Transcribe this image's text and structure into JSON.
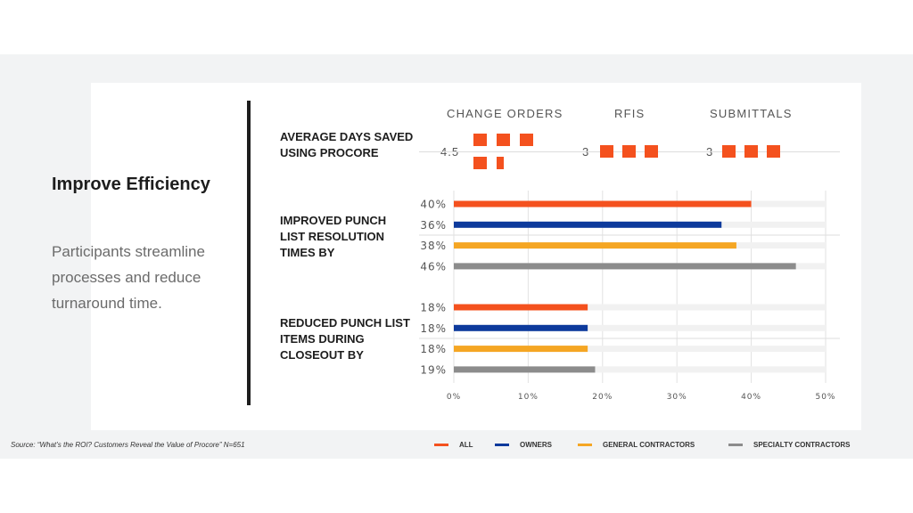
{
  "slide": {
    "headline": "Improve Efficiency",
    "description": "Participants streamline processes and reduce turnaround time.",
    "source": "Source: “What’s the ROI? Customers Reveal the Value of Procore” N=651"
  },
  "days_saved": {
    "label": "AVERAGE DAYS SAVED USING PROCORE",
    "columns": [
      {
        "name": "CHANGE ORDERS",
        "value_text": "4.5",
        "value": 4.5
      },
      {
        "name": "RFIS",
        "value_text": "3",
        "value": 3
      },
      {
        "name": "SUBMITTALS",
        "value_text": "3",
        "value": 3
      }
    ],
    "color": "#f4511e"
  },
  "chart_data": {
    "type": "bar",
    "orientation": "horizontal",
    "groups": [
      {
        "label": "IMPROVED PUNCH LIST RESOLUTION TIMES BY",
        "values": [
          40,
          36,
          38,
          46
        ],
        "value_labels": [
          "40%",
          "36%",
          "38%",
          "46%"
        ]
      },
      {
        "label": "REDUCED PUNCH LIST ITEMS DURING CLOSEOUT BY",
        "values": [
          18,
          18,
          18,
          19
        ],
        "value_labels": [
          "18%",
          "18%",
          "18%",
          "19%"
        ]
      }
    ],
    "series": [
      {
        "name": "ALL",
        "color": "#f4511e"
      },
      {
        "name": "OWNERS",
        "color": "#0d3a9c"
      },
      {
        "name": "GENERAL CONTRACTORS",
        "color": "#f5a623"
      },
      {
        "name": "SPECIALTY CONTRACTORS",
        "color": "#8c8c8c"
      }
    ],
    "xlim": [
      0,
      50
    ],
    "xticks": [
      "0%",
      "10%",
      "20%",
      "30%",
      "40%",
      "50%"
    ],
    "track_color": "#f1f1f1",
    "grid": true,
    "legend_position": "bottom"
  }
}
